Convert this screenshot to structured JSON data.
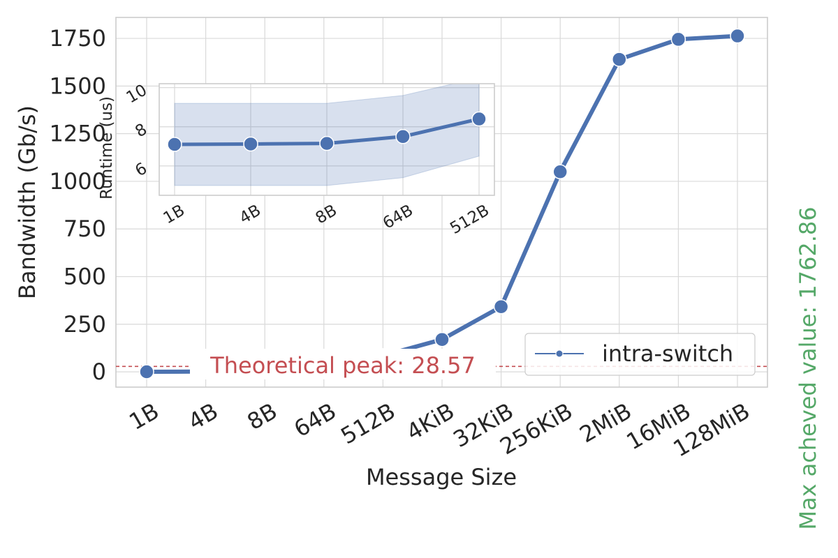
{
  "chart_data": [
    {
      "type": "line",
      "xlabel": "Message Size",
      "ylabel": "Bandwidth (Gb/s)",
      "categories": [
        "1B",
        "4B",
        "8B",
        "64B",
        "512B",
        "4KiB",
        "32KiB",
        "256KiB",
        "2MiB",
        "16MiB",
        "128MiB"
      ],
      "yticks": [
        0,
        250,
        500,
        750,
        1000,
        1250,
        1500,
        1750
      ],
      "ylim": [
        -80,
        1860
      ],
      "grid": true,
      "legend_position": "lower-right",
      "series": [
        {
          "name": "intra-switch",
          "color": "#4c72b0",
          "values": [
            0.5,
            1.8,
            3.6,
            18,
            85,
            170,
            342,
            1050,
            1640,
            1745,
            1762.86
          ],
          "band_low": [
            0.5,
            1.8,
            3.6,
            18,
            85,
            165,
            335,
            1030,
            1630,
            1740,
            1760
          ],
          "band_high": [
            0.5,
            1.8,
            3.6,
            18,
            85,
            175,
            349,
            1080,
            1650,
            1750,
            1765
          ]
        }
      ],
      "reference_line": {
        "value": 28.57,
        "label": "Theoretical peak: 28.57",
        "color": "#c44e52",
        "style": "dashed"
      },
      "side_annotation": {
        "text": "Max acheved value: 1762.86",
        "color": "#55a868"
      }
    },
    {
      "type": "line",
      "ylabel": "Runtime (us)",
      "categories": [
        "1B",
        "4B",
        "8B",
        "64B",
        "512B"
      ],
      "yticks": [
        6,
        8,
        10
      ],
      "ylim": [
        4.5,
        10.2
      ],
      "grid": true,
      "series": [
        {
          "color": "#4c72b0",
          "values": [
            7.1,
            7.12,
            7.15,
            7.5,
            8.4
          ],
          "band_low": [
            5.0,
            5.0,
            5.0,
            5.4,
            6.5
          ],
          "band_high": [
            9.2,
            9.2,
            9.2,
            9.6,
            10.5
          ]
        }
      ]
    }
  ]
}
